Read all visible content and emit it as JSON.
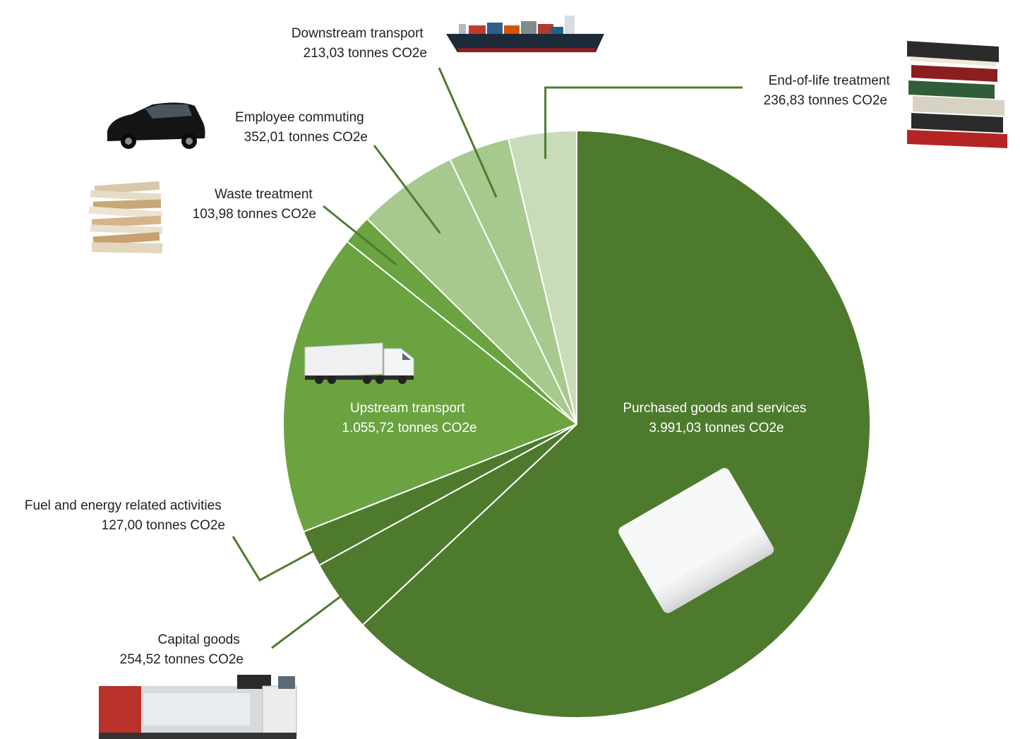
{
  "chart_data": {
    "type": "pie",
    "title": "",
    "unit": "tonnes CO2e",
    "slices": [
      {
        "name": "Purchased goods and services",
        "value": 3991.03,
        "value_label": "3.991,03 tonnes CO2e",
        "color": "#4e7a2e",
        "icon": "cards-icon"
      },
      {
        "name": "Capital goods",
        "value": 254.52,
        "value_label": "254,52 tonnes CO2e",
        "color": "#4e7a2e",
        "icon": "printer-icon"
      },
      {
        "name": "Fuel and energy related activities",
        "value": 127.0,
        "value_label": "127,00 tonnes CO2e",
        "color": "#4e7a2e",
        "icon": ""
      },
      {
        "name": "Upstream transport",
        "value": 1055.72,
        "value_label": "1.055,72 tonnes CO2e",
        "color": "#6aa340",
        "icon": "truck-icon"
      },
      {
        "name": "Waste treatment",
        "value": 103.98,
        "value_label": "103,98 tonnes CO2e",
        "color": "#6aa340",
        "icon": "paper-stack-icon"
      },
      {
        "name": "Employee commuting",
        "value": 352.01,
        "value_label": "352,01 tonnes CO2e",
        "color": "#a8c98e",
        "icon": "car-icon"
      },
      {
        "name": "Downstream transport",
        "value": 213.03,
        "value_label": "213,03 tonnes CO2e",
        "color": "#a8c98e",
        "icon": "cargo-ship-icon"
      },
      {
        "name": "End-of-life treatment",
        "value": 236.83,
        "value_label": "236,83 tonnes CO2e",
        "color": "#c9dcb9",
        "icon": "books-icon"
      }
    ]
  }
}
